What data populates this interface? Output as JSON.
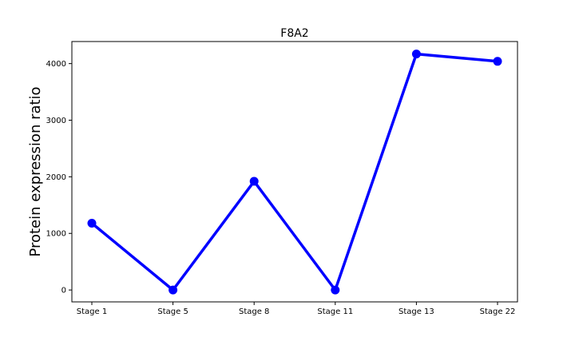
{
  "chart_data": {
    "type": "line",
    "title": "F8A2",
    "xlabel": "",
    "ylabel": "Protein expression ratio",
    "categories": [
      "Stage 1",
      "Stage 5",
      "Stage 8",
      "Stage 11",
      "Stage 13",
      "Stage 22"
    ],
    "series": [
      {
        "values": [
          1180,
          0,
          1920,
          0,
          4170,
          4040
        ]
      }
    ],
    "ylim": [
      -210,
      4390
    ],
    "yticks": [
      0,
      1000,
      2000,
      3000,
      4000
    ],
    "grid": false,
    "line_color": "#0000ff",
    "marker": "circle"
  }
}
